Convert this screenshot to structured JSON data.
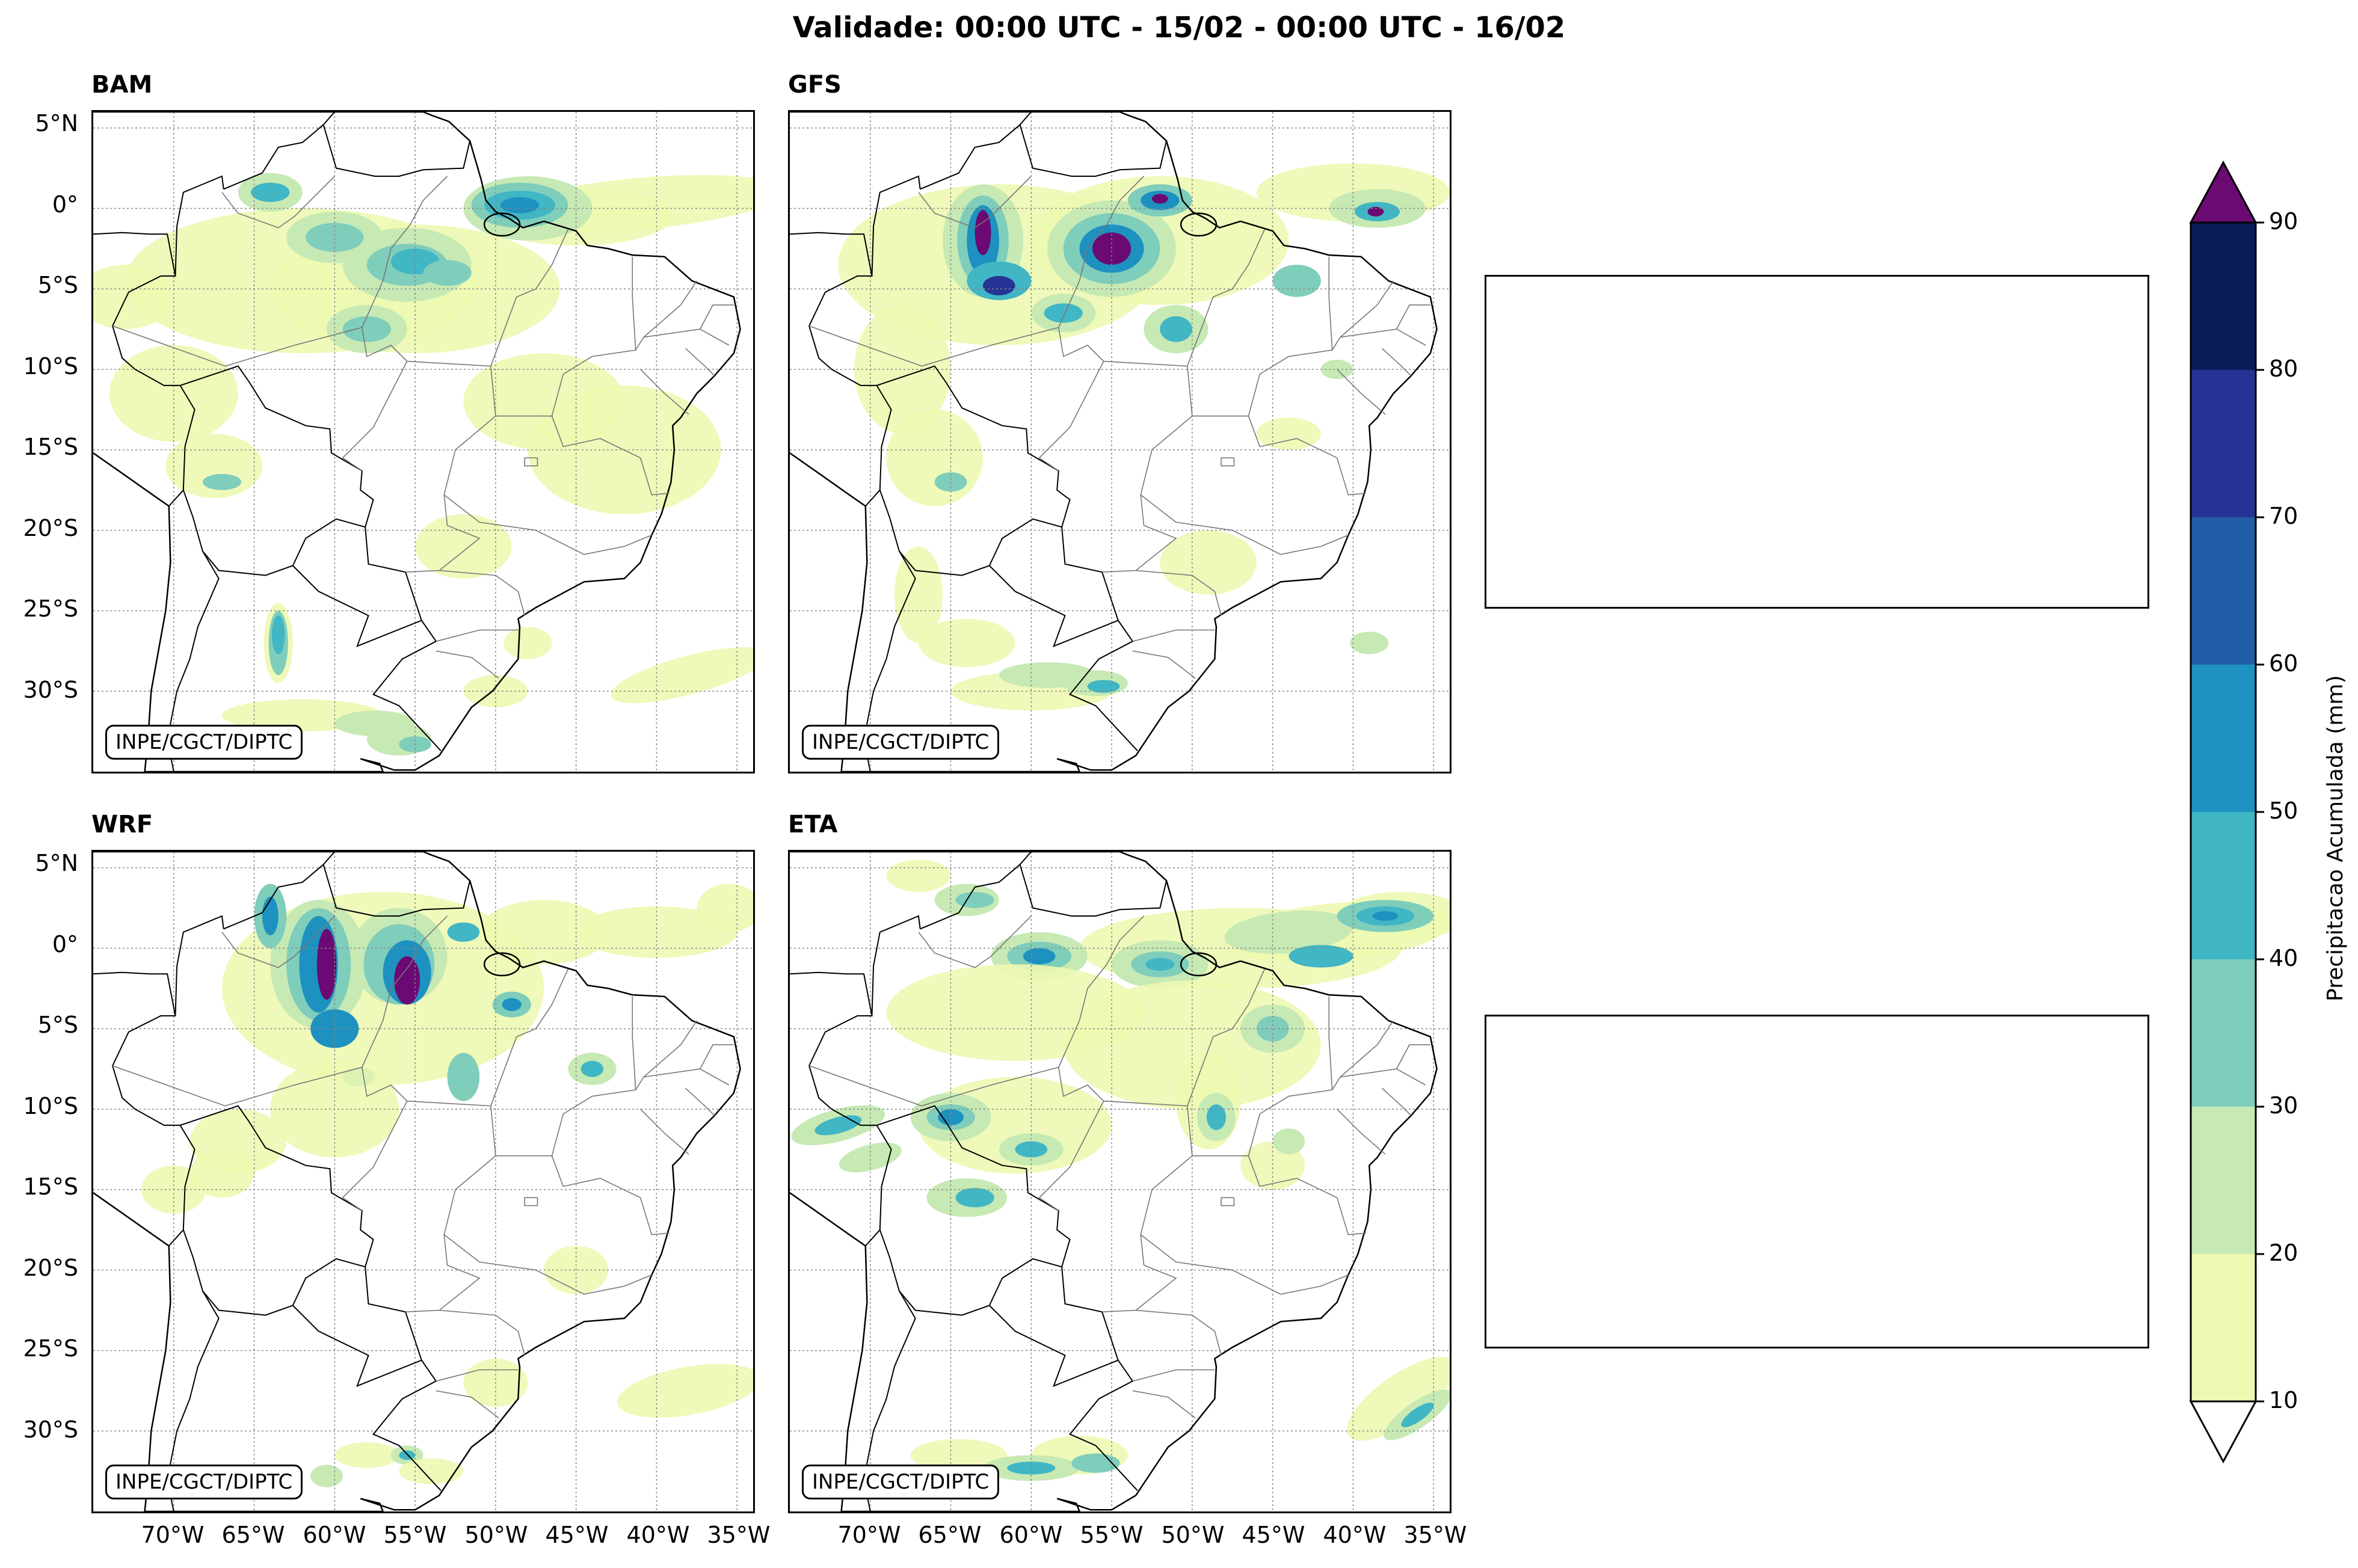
{
  "title": "Validade: 00:00 UTC - 15/02 - 00:00 UTC - 16/02",
  "credit": "INPE/CGCT/DIPTC",
  "panels": [
    {
      "id": "bam",
      "title": "BAM"
    },
    {
      "id": "gfs",
      "title": "GFS"
    },
    {
      "id": "wrf",
      "title": "WRF"
    },
    {
      "id": "eta",
      "title": "ETA"
    }
  ],
  "lat_labels": [
    "5°N",
    "0°",
    "5°S",
    "10°S",
    "15°S",
    "20°S",
    "25°S",
    "30°S"
  ],
  "lon_labels": [
    "70°W",
    "65°W",
    "60°W",
    "55°W",
    "50°W",
    "45°W",
    "40°W",
    "35°W"
  ],
  "colorbar": {
    "label": "Precipitacao Acumulada (mm)",
    "ticks": [
      "10",
      "20",
      "30",
      "40",
      "50",
      "60",
      "70",
      "80",
      "90"
    ],
    "colors": [
      "#edf8b1",
      "#c7e9b4",
      "#7fcdbb",
      "#41b6c4",
      "#1d91c0",
      "#225ea8",
      "#253494",
      "#081d58"
    ],
    "extend_max_color": "#6a0a72",
    "extend_min_color": "#ffffff"
  },
  "chart_data": {
    "type": "map",
    "variable": "Precipitacao Acumulada (mm)",
    "levels_mm": [
      10,
      20,
      30,
      40,
      50,
      60,
      70,
      80,
      90
    ],
    "extent": {
      "lon": [
        -75,
        -34
      ],
      "lat": [
        -35,
        6
      ]
    },
    "models": [
      "BAM",
      "GFS",
      "WRF",
      "ETA"
    ]
  }
}
